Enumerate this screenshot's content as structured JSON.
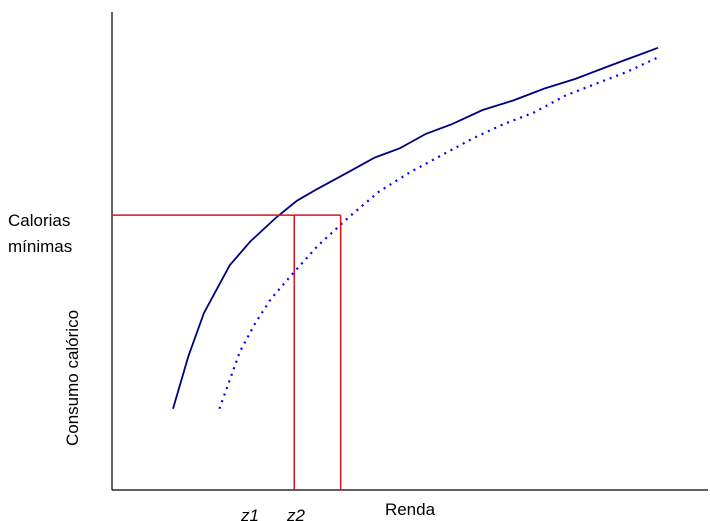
{
  "chart_data": {
    "type": "line",
    "title": "",
    "xlabel": "Renda",
    "ylabel": "Consumo calórico",
    "x_ticks": [
      "z1",
      "z2"
    ],
    "threshold_label_line1": "Calorias",
    "threshold_label_line2": "mínimas",
    "grid": false,
    "series": [
      {
        "style": "solid",
        "color": "#00007f",
        "points": [
          [
            0.06,
            0.17
          ],
          [
            0.09,
            0.28
          ],
          [
            0.12,
            0.37
          ],
          [
            0.17,
            0.47
          ],
          [
            0.21,
            0.52
          ],
          [
            0.26,
            0.57
          ],
          [
            0.3,
            0.605
          ],
          [
            0.34,
            0.63
          ],
          [
            0.4,
            0.665
          ],
          [
            0.45,
            0.695
          ],
          [
            0.5,
            0.715
          ],
          [
            0.55,
            0.745
          ],
          [
            0.6,
            0.765
          ],
          [
            0.66,
            0.795
          ],
          [
            0.72,
            0.815
          ],
          [
            0.78,
            0.84
          ],
          [
            0.84,
            0.86
          ],
          [
            0.9,
            0.885
          ],
          [
            0.95,
            0.905
          ],
          [
            1.0,
            0.925
          ]
        ]
      },
      {
        "style": "dotted",
        "color": "#0000ff",
        "points": [
          [
            0.15,
            0.17
          ],
          [
            0.17,
            0.23
          ],
          [
            0.19,
            0.29
          ],
          [
            0.22,
            0.35
          ],
          [
            0.25,
            0.4
          ],
          [
            0.29,
            0.45
          ],
          [
            0.34,
            0.51
          ],
          [
            0.4,
            0.57
          ],
          [
            0.46,
            0.625
          ],
          [
            0.52,
            0.665
          ],
          [
            0.58,
            0.7
          ],
          [
            0.64,
            0.735
          ],
          [
            0.7,
            0.765
          ],
          [
            0.76,
            0.79
          ],
          [
            0.82,
            0.825
          ],
          [
            0.88,
            0.85
          ],
          [
            0.94,
            0.875
          ],
          [
            1.0,
            0.905
          ]
        ]
      }
    ],
    "threshold_y": 0.575,
    "z1_x": 0.295,
    "z2_x": 0.385,
    "threshold_color": "#e0101a",
    "axis_color": "#000000"
  }
}
